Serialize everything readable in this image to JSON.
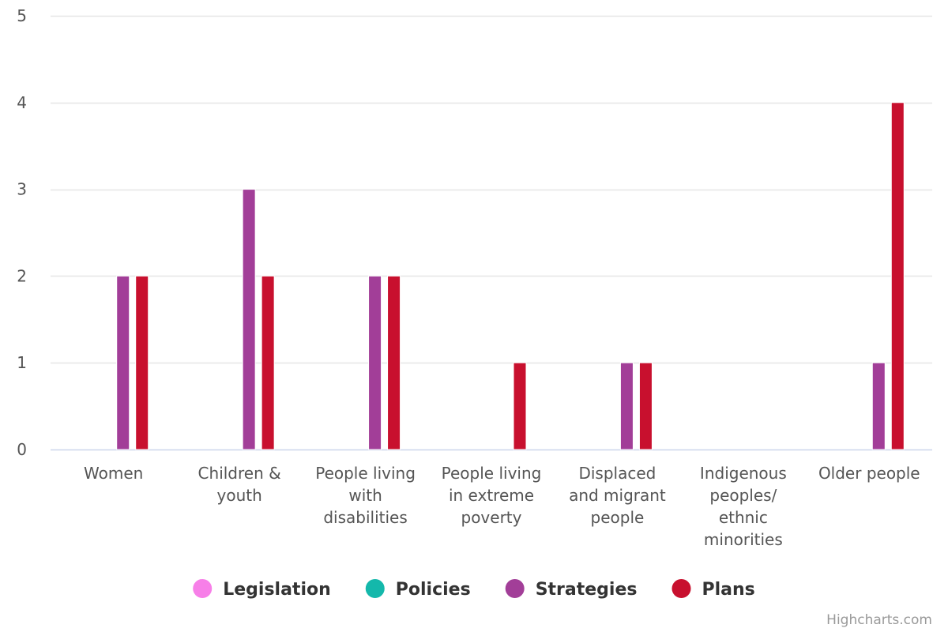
{
  "chart_data": {
    "type": "bar",
    "title": "",
    "xlabel": "",
    "ylabel": "",
    "ylim": [
      0,
      5
    ],
    "yticks": [
      0,
      1,
      2,
      3,
      4,
      5
    ],
    "grid": true,
    "legend_position": "bottom",
    "categories": [
      [
        "Women"
      ],
      [
        "Children &",
        "youth"
      ],
      [
        "People living",
        "with",
        "disabilities"
      ],
      [
        "People living",
        "in extreme",
        "poverty"
      ],
      [
        "Displaced",
        "and migrant",
        "people"
      ],
      [
        "Indigenous",
        "peoples/",
        "ethnic",
        "minorities"
      ],
      [
        "Older people"
      ]
    ],
    "series": [
      {
        "name": "Legislation",
        "color": "#f77fe8",
        "values": [
          0,
          0,
          0,
          0,
          0,
          0,
          0
        ]
      },
      {
        "name": "Policies",
        "color": "#14b8ab",
        "values": [
          0,
          0,
          0,
          0,
          0,
          0,
          0
        ]
      },
      {
        "name": "Strategies",
        "color": "#a23e98",
        "values": [
          2,
          3,
          2,
          0,
          1,
          0,
          1
        ]
      },
      {
        "name": "Plans",
        "color": "#c8102e",
        "values": [
          2,
          2,
          2,
          1,
          1,
          0,
          4
        ]
      }
    ]
  },
  "credits": "Highcharts.com"
}
